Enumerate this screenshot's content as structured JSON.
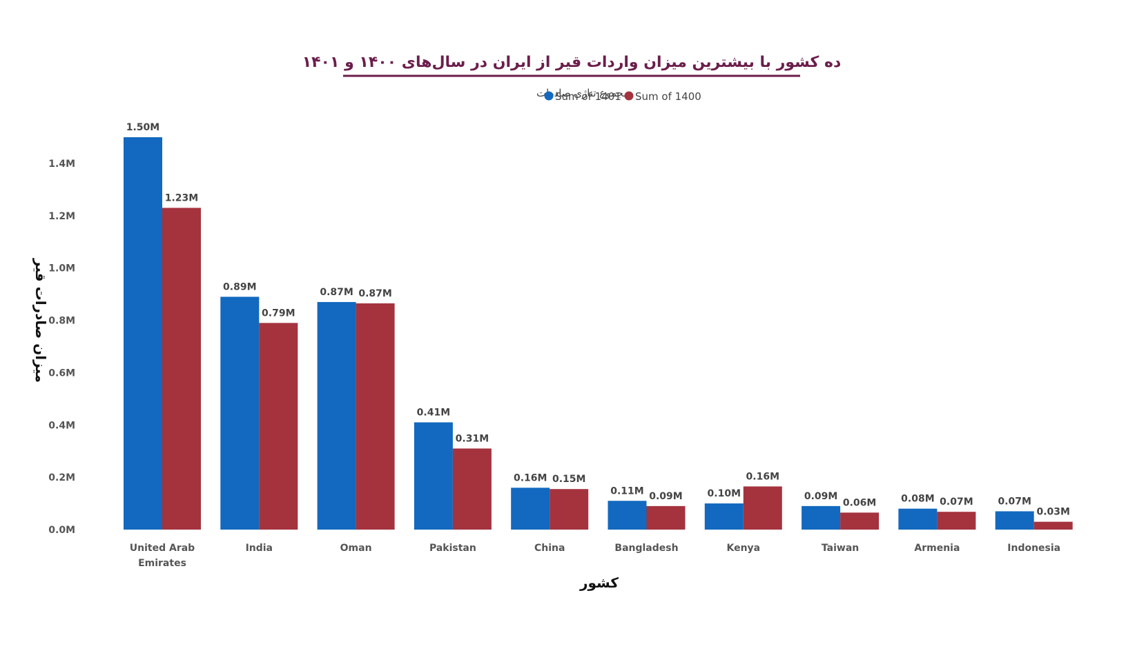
{
  "chart_data": {
    "type": "bar",
    "title": "ده کشور با بیشترین میزان واردات قیر از ایران در سال‌های ۱۴۰۰ و ۱۴۰۱",
    "legend_title": "مجموع تناژی صادرات",
    "legend_position": "top-center",
    "xlabel": "کشور",
    "ylabel": "میزان صادرات قیر",
    "ylim": [
      0,
      1.5
    ],
    "yticks": [
      "0.0M",
      "0.2M",
      "0.4M",
      "0.6M",
      "0.8M",
      "1.0M",
      "1.2M",
      "1.4M"
    ],
    "grid": false,
    "categories": [
      [
        "United Arab",
        "Emirates"
      ],
      [
        "India"
      ],
      [
        "Oman"
      ],
      [
        "Pakistan"
      ],
      [
        "China"
      ],
      [
        "Bangladesh"
      ],
      [
        "Kenya"
      ],
      [
        "Taiwan"
      ],
      [
        "Armenia"
      ],
      [
        "Indonesia"
      ]
    ],
    "series": [
      {
        "name": "Sum of 1401",
        "color": "#1269BF",
        "values": [
          1.5,
          0.89,
          0.87,
          0.41,
          0.16,
          0.11,
          0.1,
          0.09,
          0.08,
          0.07
        ],
        "labels": [
          "1.50M",
          "0.89M",
          "0.87M",
          "0.41M",
          "0.16M",
          "0.11M",
          "0.10M",
          "0.09M",
          "0.08M",
          "0.07M"
        ]
      },
      {
        "name": "Sum of 1400",
        "color": "#A4333E",
        "values": [
          1.23,
          0.79,
          0.865,
          0.31,
          0.155,
          0.09,
          0.165,
          0.065,
          0.068,
          0.03
        ],
        "labels": [
          "1.23M",
          "0.79M",
          "0.87M",
          "0.31M",
          "0.15M",
          "0.09M",
          "0.16M",
          "0.06M",
          "0.07M",
          "0.03M"
        ]
      }
    ]
  },
  "colors": {
    "title": "#6B1E4B",
    "title_underline": "#6B1E4B"
  }
}
